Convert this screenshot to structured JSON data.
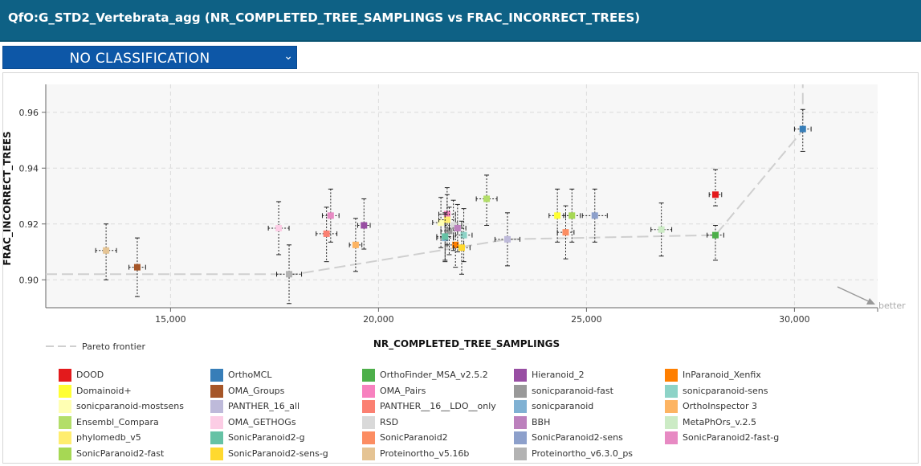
{
  "title": "QfO:G_STD2_Vertebrata_agg (NR_COMPLETED_TREE_SAMPLINGS vs FRAC_INCORRECT_TREES)",
  "classification": {
    "selected": "NO CLASSIFICATION"
  },
  "icons": {
    "dropdown": "chevron-down-icon",
    "better": "arrow-icon"
  },
  "chart_data": {
    "type": "scatter",
    "xlabel": "NR_COMPLETED_TREE_SAMPLINGS",
    "ylabel": "FRAC_INCORRECT_TREES",
    "xlim": [
      12000,
      32000
    ],
    "ylim": [
      0.89,
      0.97
    ],
    "xticks": [
      15000,
      20000,
      25000,
      30000
    ],
    "xtick_labels": [
      "15,000",
      "20,000",
      "25,000",
      "30,000"
    ],
    "yticks": [
      0.9,
      0.92,
      0.94,
      0.96
    ],
    "ytick_labels": [
      "0.90",
      "0.92",
      "0.94",
      "0.96"
    ],
    "grid": true,
    "better_label": "better",
    "pareto_label": "Pareto frontier",
    "pareto_line": [
      [
        12000,
        0.902
      ],
      [
        18000,
        0.902
      ],
      [
        23100,
        0.9145
      ],
      [
        28100,
        0.916
      ],
      [
        30200,
        0.9535
      ],
      [
        30200,
        0.97
      ]
    ],
    "series": [
      {
        "name": "DOOD",
        "color": "#e31a1c",
        "x": 28100,
        "y": 0.9305,
        "xerr": 150,
        "yerr": [
          0.004,
          0.009
        ]
      },
      {
        "name": "OrthoMCL",
        "color": "#377eb8",
        "x": 30200,
        "y": 0.954,
        "xerr": 200,
        "yerr": [
          0.008,
          0.007
        ]
      },
      {
        "name": "OrthoFinder_MSA_v2.5.2",
        "color": "#4daf4a",
        "x": 28100,
        "y": 0.916,
        "xerr": 200,
        "yerr": [
          0.009,
          0.0035
        ]
      },
      {
        "name": "Hieranoid_2",
        "color": "#984ea3",
        "x": 19650,
        "y": 0.9195,
        "xerr": 150,
        "yerr": [
          0.0085,
          0.0095
        ]
      },
      {
        "name": "InParanoid_Xenfix",
        "color": "#ff7f00",
        "x": 21850,
        "y": 0.9125,
        "xerr": 200,
        "yerr": [
          0.008,
          0.008
        ]
      },
      {
        "name": "Domainoid+",
        "color": "#ffff33",
        "x": 24300,
        "y": 0.923,
        "xerr": 200,
        "yerr": [
          0.0095,
          0.0095
        ]
      },
      {
        "name": "OMA_Groups",
        "color": "#a65628",
        "x": 14200,
        "y": 0.9045,
        "xerr": 200,
        "yerr": [
          0.0105,
          0.0105
        ]
      },
      {
        "name": "OMA_Pairs",
        "color": "#f781bf",
        "x": 21650,
        "y": 0.9235,
        "xerr": 200,
        "yerr": [
          0.008,
          0.0095
        ]
      },
      {
        "name": "sonicparanoid-fast",
        "color": "#999999",
        "x": 21700,
        "y": 0.9175,
        "xerr": 200,
        "yerr": [
          0.0085,
          0.0085
        ]
      },
      {
        "name": "sonicparanoid-sens",
        "color": "#8dd3c7",
        "x": 22050,
        "y": 0.916,
        "xerr": 200,
        "yerr": [
          0.0095,
          0.0095
        ]
      },
      {
        "name": "sonicparanoid-mostsens",
        "color": "#ffffb3",
        "x": 21500,
        "y": 0.9205,
        "xerr": 200,
        "yerr": [
          0.009,
          0.009
        ]
      },
      {
        "name": "PANTHER_16_all",
        "color": "#bebada",
        "x": 23100,
        "y": 0.9145,
        "xerr": 300,
        "yerr": [
          0.0095,
          0.0095
        ]
      },
      {
        "name": "sonicparanoid",
        "color": "#80b1d3",
        "x": 21600,
        "y": 0.915,
        "xerr": 200,
        "yerr": [
          0.0085,
          0.0085
        ]
      },
      {
        "name": "OrthoInspector 3",
        "color": "#fdb462",
        "x": 19450,
        "y": 0.9125,
        "xerr": 150,
        "yerr": [
          0.0095,
          0.0095
        ]
      },
      {
        "name": "Ensembl_Compara",
        "color": "#b3de69",
        "x": 22600,
        "y": 0.929,
        "xerr": 250,
        "yerr": [
          0.0095,
          0.0085
        ]
      },
      {
        "name": "OMA_GETHOGs",
        "color": "#fccde5",
        "x": 17600,
        "y": 0.9185,
        "xerr": 250,
        "yerr": [
          0.0095,
          0.0095
        ]
      },
      {
        "name": "RSD",
        "color": "#d9d9d9",
        "x": 21800,
        "y": 0.9195,
        "xerr": 200,
        "yerr": [
          0.009,
          0.009
        ]
      },
      {
        "name": "BBH",
        "color": "#bc80bd",
        "x": 21900,
        "y": 0.9185,
        "xerr": 200,
        "yerr": [
          0.0085,
          0.0085
        ]
      },
      {
        "name": "MetaPhOrs_v.2.5",
        "color": "#ccebc5",
        "x": 26800,
        "y": 0.918,
        "xerr": 250,
        "yerr": [
          0.0095,
          0.0095
        ]
      },
      {
        "name": "phylomedb_v5",
        "color": "#ffed6f",
        "x": 21650,
        "y": 0.9215,
        "xerr": 200,
        "yerr": [
          0.009,
          0.009
        ]
      },
      {
        "name": "SonicParanoid2-g",
        "color": "#66c2a5",
        "x": 21600,
        "y": 0.9155,
        "xerr": 200,
        "yerr": [
          0.0085,
          0.0085
        ]
      },
      {
        "name": "SonicParanoid2",
        "color": "#fc8d62",
        "x": 24500,
        "y": 0.917,
        "xerr": 200,
        "yerr": [
          0.0095,
          0.0095
        ]
      },
      {
        "name": "SonicParanoid2-sens",
        "color": "#8da0cb",
        "x": 25200,
        "y": 0.923,
        "xerr": 300,
        "yerr": [
          0.0095,
          0.0095
        ]
      },
      {
        "name": "SonicParanoid2-fast-g",
        "color": "#e78ac3",
        "x": 18850,
        "y": 0.923,
        "xerr": 200,
        "yerr": [
          0.0095,
          0.0095
        ]
      },
      {
        "name": "SonicParanoid2-fast",
        "color": "#a6d854",
        "x": 24650,
        "y": 0.923,
        "xerr": 200,
        "yerr": [
          0.0095,
          0.0095
        ]
      },
      {
        "name": "SonicParanoid2-sens-g",
        "color": "#ffd92f",
        "x": 22000,
        "y": 0.9115,
        "xerr": 200,
        "yerr": [
          0.0095,
          0.0095
        ]
      },
      {
        "name": "Proteinortho_v5.16b",
        "color": "#e5c494",
        "x": 13450,
        "y": 0.9105,
        "xerr": 250,
        "yerr": [
          0.0105,
          0.0095
        ]
      },
      {
        "name": "Proteinortho_v6.3.0_ps",
        "color": "#b3b3b3",
        "x": 17850,
        "y": 0.902,
        "xerr": 300,
        "yerr": [
          0.0105,
          0.0105
        ]
      },
      {
        "name": "PANTHER__16__LDO__only",
        "color": "#fb8072",
        "x": 18750,
        "y": 0.9165,
        "xerr": 250,
        "yerr": [
          0.01,
          0.0095
        ]
      }
    ]
  },
  "legend_order": [
    "DOOD",
    "OrthoMCL",
    "OrthoFinder_MSA_v2.5.2",
    "Hieranoid_2",
    "InParanoid_Xenfix",
    "Domainoid+",
    "OMA_Groups",
    "OMA_Pairs",
    "sonicparanoid-fast",
    "sonicparanoid-sens",
    "sonicparanoid-mostsens",
    "PANTHER_16_all",
    "PANTHER__16__LDO__only",
    "sonicparanoid",
    "OrthoInspector 3",
    "Ensembl_Compara",
    "OMA_GETHOGs",
    "RSD",
    "BBH",
    "MetaPhOrs_v.2.5",
    "phylomedb_v5",
    "SonicParanoid2-g",
    "SonicParanoid2",
    "SonicParanoid2-sens",
    "SonicParanoid2-fast-g",
    "SonicParanoid2-fast",
    "SonicParanoid2-sens-g",
    "Proteinortho_v5.16b",
    "Proteinortho_v6.3.0_ps"
  ]
}
